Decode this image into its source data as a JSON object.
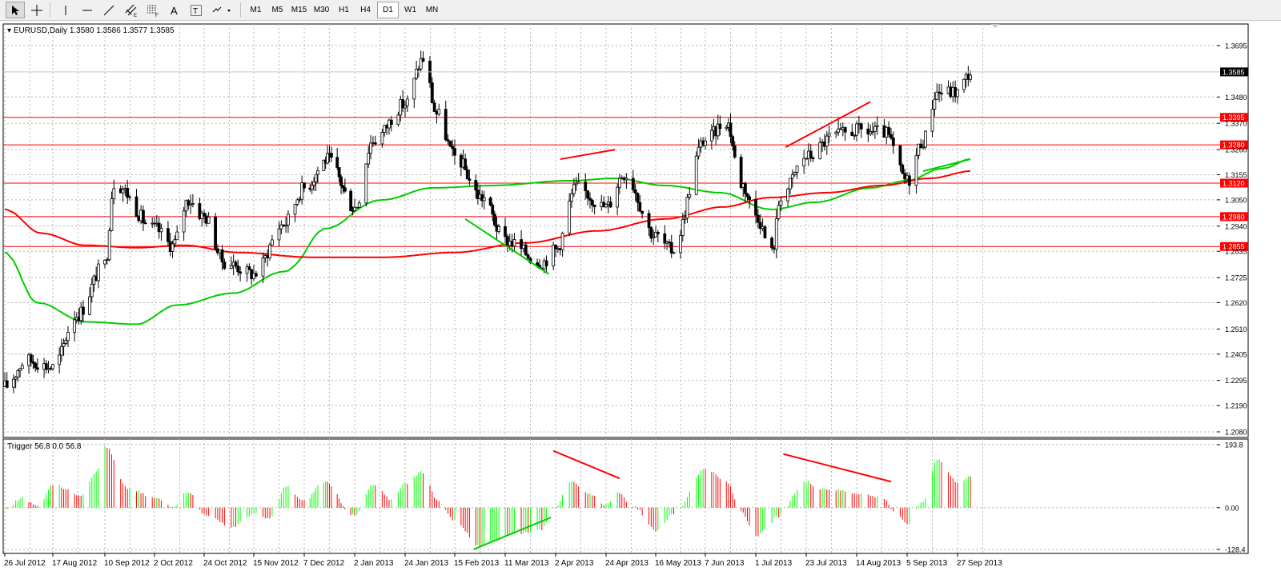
{
  "toolbar": {
    "tools": [
      {
        "name": "cursor-tool-button",
        "icon": "cursor-arrow"
      },
      {
        "name": "crosshair-tool-button",
        "icon": "crosshair"
      },
      {
        "name": "vertical-line-tool-button",
        "icon": "vertical-line"
      },
      {
        "name": "horizontal-line-tool-button",
        "icon": "horizontal-line"
      },
      {
        "name": "trendline-tool-button",
        "icon": "trendline"
      },
      {
        "name": "equidistant-channel-tool-button",
        "icon": "channel-E"
      },
      {
        "name": "fibonacci-tool-button",
        "icon": "fibo-F"
      },
      {
        "name": "text-tool-button",
        "icon": "text-A"
      },
      {
        "name": "text-label-tool-button",
        "icon": "text-label-T"
      },
      {
        "name": "arrows-tool-button",
        "icon": "arrows-dropdown"
      }
    ],
    "timeframes": [
      "M1",
      "M5",
      "M15",
      "M30",
      "H1",
      "H4",
      "D1",
      "W1",
      "MN"
    ],
    "active_timeframe": "D1"
  },
  "chart_data": [
    {
      "type": "candlestick",
      "title": "EURUSD,Daily",
      "ohlc": "1.3580 1.3586 1.3577 1.3585",
      "current_price": "1.3585",
      "ylim": [
        1.208,
        1.3695
      ],
      "y_ticks": [
        "1.3695",
        "1.3480",
        "1.3370",
        "1.3260",
        "1.3155",
        "1.3050",
        "1.2940",
        "1.2835",
        "1.2725",
        "1.2620",
        "1.2510",
        "1.2405",
        "1.2295",
        "1.2190",
        "1.2080"
      ],
      "x_labels": [
        "26 Jul 2012",
        "17 Aug 2012",
        "10 Sep 2012",
        "2 Oct 2012",
        "24 Oct 2012",
        "15 Nov 2012",
        "7 Dec 2012",
        "2 Jan 2013",
        "24 Jan 2013",
        "15 Feb 2013",
        "11 Mar 2013",
        "2 Apr 2013",
        "24 Apr 2013",
        "16 May 2013",
        "7 Jun 2013",
        "1 Jul 2013",
        "23 Jul 2013",
        "14 Aug 2013",
        "5 Sep 2013",
        "27 Sep 2013"
      ],
      "horizontal_levels": [
        "1.3395",
        "1.3280",
        "1.3120",
        "1.2980",
        "1.2855"
      ],
      "close_anchors": [
        {
          "x": "26 Jul 2012",
          "y": 1.227
        },
        {
          "x": "2012-08-05",
          "y": 1.238
        },
        {
          "x": "17 Aug 2012",
          "y": 1.235
        },
        {
          "x": "2012-08-28",
          "y": 1.257
        },
        {
          "x": "10 Sep 2012",
          "y": 1.278
        },
        {
          "x": "2012-09-14",
          "y": 1.312
        },
        {
          "x": "2 Oct 2012",
          "y": 1.293
        },
        {
          "x": "2012-10-10",
          "y": 1.286
        },
        {
          "x": "2012-10-17",
          "y": 1.305
        },
        {
          "x": "24 Oct 2012",
          "y": 1.298
        },
        {
          "x": "2012-11-02",
          "y": 1.279
        },
        {
          "x": "15 Nov 2012",
          "y": 1.274
        },
        {
          "x": "2012-11-28",
          "y": 1.295
        },
        {
          "x": "7 Dec 2012",
          "y": 1.31
        },
        {
          "x": "2012-12-19",
          "y": 1.322
        },
        {
          "x": "2 Jan 2013",
          "y": 1.302
        },
        {
          "x": "2013-01-10",
          "y": 1.33
        },
        {
          "x": "24 Jan 2013",
          "y": 1.345
        },
        {
          "x": "2013-02-01",
          "y": 1.364
        },
        {
          "x": "2013-02-07",
          "y": 1.341
        },
        {
          "x": "15 Feb 2013",
          "y": 1.323
        },
        {
          "x": "2013-02-28",
          "y": 1.306
        },
        {
          "x": "11 Mar 2013",
          "y": 1.288
        },
        {
          "x": "2013-03-27",
          "y": 1.279
        },
        {
          "x": "2 Apr 2013",
          "y": 1.284
        },
        {
          "x": "2013-04-11",
          "y": 1.31
        },
        {
          "x": "24 Apr 2013",
          "y": 1.302
        },
        {
          "x": "2013-05-02",
          "y": 1.316
        },
        {
          "x": "16 May 2013",
          "y": 1.29
        },
        {
          "x": "2013-05-23",
          "y": 1.284
        },
        {
          "x": "7 Jun 2013",
          "y": 1.33
        },
        {
          "x": "2013-06-17",
          "y": 1.338
        },
        {
          "x": "2013-06-24",
          "y": 1.312
        },
        {
          "x": "1 Jul 2013",
          "y": 1.299
        },
        {
          "x": "2013-07-08",
          "y": 1.283
        },
        {
          "x": "2013-07-12",
          "y": 1.307
        },
        {
          "x": "23 Jul 2013",
          "y": 1.323
        },
        {
          "x": "2013-08-05",
          "y": 1.332
        },
        {
          "x": "14 Aug 2013",
          "y": 1.334
        },
        {
          "x": "2013-08-26",
          "y": 1.333
        },
        {
          "x": "5 Sep 2013",
          "y": 1.313
        },
        {
          "x": "2013-09-12",
          "y": 1.33
        },
        {
          "x": "2013-09-18",
          "y": 1.35
        },
        {
          "x": "27 Sep 2013",
          "y": 1.35
        },
        {
          "x": "2013-10-03",
          "y": 1.358
        }
      ],
      "series": [
        {
          "name": "MA green",
          "color": "#00cc00",
          "values": [
            {
              "x": "26 Jul 2012",
              "y": 1.283
            },
            {
              "x": "2012-08-10",
              "y": 1.262
            },
            {
              "x": "2012-09-01",
              "y": 1.254
            },
            {
              "x": "2012-09-24",
              "y": 1.253
            },
            {
              "x": "2012-10-12",
              "y": 1.261
            },
            {
              "x": "2012-11-06",
              "y": 1.266
            },
            {
              "x": "2012-11-28",
              "y": 1.275
            },
            {
              "x": "2012-12-18",
              "y": 1.293
            },
            {
              "x": "2013-01-14",
              "y": 1.305
            },
            {
              "x": "2013-02-05",
              "y": 1.31
            },
            {
              "x": "2013-03-05",
              "y": 1.311
            },
            {
              "x": "2013-04-08",
              "y": 1.313
            },
            {
              "x": "2013-04-28",
              "y": 1.314
            },
            {
              "x": "2013-05-20",
              "y": 1.311
            },
            {
              "x": "2013-06-14",
              "y": 1.308
            },
            {
              "x": "2013-07-08",
              "y": 1.301
            },
            {
              "x": "2013-07-27",
              "y": 1.304
            },
            {
              "x": "2013-08-20",
              "y": 1.31
            },
            {
              "x": "2013-09-05",
              "y": 1.313
            },
            {
              "x": "2013-09-20",
              "y": 1.318
            },
            {
              "x": "2013-10-03",
              "y": 1.322
            }
          ]
        },
        {
          "name": "MA red",
          "color": "#ff0000",
          "values": [
            {
              "x": "26 Jul 2012",
              "y": 1.301
            },
            {
              "x": "2012-08-12",
              "y": 1.291
            },
            {
              "x": "2012-09-01",
              "y": 1.286
            },
            {
              "x": "2012-09-24",
              "y": 1.285
            },
            {
              "x": "2012-10-15",
              "y": 1.286
            },
            {
              "x": "2012-11-08",
              "y": 1.283
            },
            {
              "x": "2012-12-10",
              "y": 1.281
            },
            {
              "x": "2013-01-15",
              "y": 1.281
            },
            {
              "x": "2013-02-15",
              "y": 1.283
            },
            {
              "x": "2013-03-20",
              "y": 1.287
            },
            {
              "x": "2013-04-20",
              "y": 1.292
            },
            {
              "x": "2013-05-20",
              "y": 1.297
            },
            {
              "x": "2013-06-15",
              "y": 1.302
            },
            {
              "x": "2013-07-08",
              "y": 1.306
            },
            {
              "x": "2013-08-01",
              "y": 1.308
            },
            {
              "x": "2013-08-25",
              "y": 1.311
            },
            {
              "x": "2013-09-15",
              "y": 1.314
            },
            {
              "x": "2013-10-03",
              "y": 1.317
            }
          ]
        }
      ],
      "trendlines": [
        {
          "color": "#00cc00",
          "from": {
            "x": "2013-02-20",
            "y": 1.297
          },
          "to": {
            "x": "2013-03-30",
            "y": 1.274
          }
        },
        {
          "color": "#ff0000",
          "from": {
            "x": "2013-04-04",
            "y": 1.322
          },
          "to": {
            "x": "2013-04-28",
            "y": 1.326
          }
        },
        {
          "color": "#ff0000",
          "from": {
            "x": "2013-07-14",
            "y": 1.327
          },
          "to": {
            "x": "2013-08-20",
            "y": 1.346
          }
        },
        {
          "color": "#00cc00",
          "from": {
            "x": "2013-09-12",
            "y": 1.317
          },
          "to": {
            "x": "2013-10-03",
            "y": 1.322
          }
        }
      ]
    },
    {
      "type": "bar",
      "title": "Trigger 56.8 0.0 56.8",
      "ylim": [
        -128.4,
        193.8
      ],
      "y_ticks": [
        "193.8",
        "0.00",
        "-128.4"
      ],
      "bar_colors": {
        "rising": "#00ff00",
        "falling": "#ff0000"
      },
      "anchors": [
        {
          "x": "26 Jul 2012",
          "y": -5
        },
        {
          "x": "2012-08-03",
          "y": 30
        },
        {
          "x": "2012-08-10",
          "y": 5
        },
        {
          "x": "17 Aug 2012",
          "y": 70
        },
        {
          "x": "2012-08-30",
          "y": 40
        },
        {
          "x": "2012-09-06",
          "y": 110
        },
        {
          "x": "10 Sep 2012",
          "y": 190
        },
        {
          "x": "2012-09-20",
          "y": 60
        },
        {
          "x": "2 Oct 2012",
          "y": 30
        },
        {
          "x": "2012-10-10",
          "y": 5
        },
        {
          "x": "2012-10-17",
          "y": 50
        },
        {
          "x": "24 Oct 2012",
          "y": -20
        },
        {
          "x": "2012-11-05",
          "y": -60
        },
        {
          "x": "15 Nov 2012",
          "y": -20
        },
        {
          "x": "2012-11-22",
          "y": -35
        },
        {
          "x": "2012-11-29",
          "y": 65
        },
        {
          "x": "7 Dec 2012",
          "y": 20
        },
        {
          "x": "2012-12-17",
          "y": 80
        },
        {
          "x": "2 Jan 2013",
          "y": -25
        },
        {
          "x": "2013-01-10",
          "y": 70
        },
        {
          "x": "2013-01-18",
          "y": 25
        },
        {
          "x": "24 Jan 2013",
          "y": 75
        },
        {
          "x": "2013-01-31",
          "y": 110
        },
        {
          "x": "2013-02-08",
          "y": 20
        },
        {
          "x": "15 Feb 2013",
          "y": -40
        },
        {
          "x": "2013-02-27",
          "y": -120
        },
        {
          "x": "11 Mar 2013",
          "y": -85
        },
        {
          "x": "2013-03-26",
          "y": -70
        },
        {
          "x": "2 Apr 2013",
          "y": 5
        },
        {
          "x": "2013-04-08",
          "y": 80
        },
        {
          "x": "2013-04-17",
          "y": 40
        },
        {
          "x": "24 Apr 2013",
          "y": 10
        },
        {
          "x": "2013-04-29",
          "y": 45
        },
        {
          "x": "2013-05-06",
          "y": 5
        },
        {
          "x": "16 May 2013",
          "y": -70
        },
        {
          "x": "2013-05-24",
          "y": -20
        },
        {
          "x": "7 Jun 2013",
          "y": 120
        },
        {
          "x": "2013-06-17",
          "y": 80
        },
        {
          "x": "2013-06-24",
          "y": -10
        },
        {
          "x": "1 Jul 2013",
          "y": -90
        },
        {
          "x": "2013-07-05",
          "y": -70
        },
        {
          "x": "2013-07-10",
          "y": -30
        },
        {
          "x": "23 Jul 2013",
          "y": 80
        },
        {
          "x": "2013-07-29",
          "y": 60
        },
        {
          "x": "2013-08-05",
          "y": 55
        },
        {
          "x": "14 Aug 2013",
          "y": 45
        },
        {
          "x": "2013-08-26",
          "y": 30
        },
        {
          "x": "2013-08-30",
          "y": -10
        },
        {
          "x": "5 Sep 2013",
          "y": -50
        },
        {
          "x": "2013-09-12",
          "y": 20
        },
        {
          "x": "2013-09-18",
          "y": 150
        },
        {
          "x": "27 Sep 2013",
          "y": 80
        },
        {
          "x": "2013-10-03",
          "y": 95
        }
      ],
      "trendlines": [
        {
          "color": "#ff0000",
          "from": {
            "x": "2013-04-01",
            "y": 175
          },
          "to": {
            "x": "2013-04-30",
            "y": 90
          }
        },
        {
          "color": "#00cc00",
          "from": {
            "x": "2013-02-24",
            "y": -128
          },
          "to": {
            "x": "2013-03-31",
            "y": -30
          }
        },
        {
          "color": "#ff0000",
          "from": {
            "x": "2013-07-13",
            "y": 165
          },
          "to": {
            "x": "2013-08-29",
            "y": 80
          }
        }
      ]
    }
  ]
}
